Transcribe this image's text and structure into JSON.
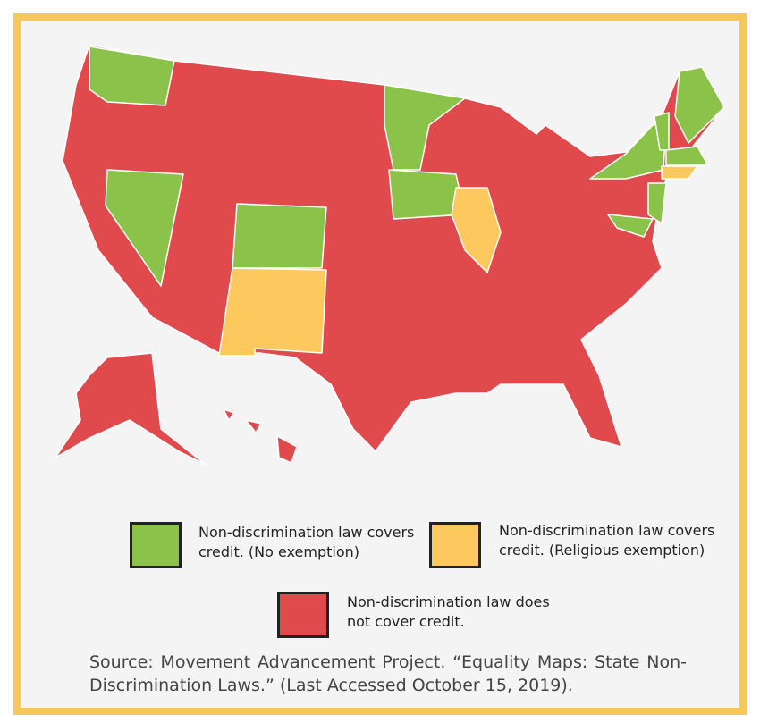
{
  "legend": [
    {
      "label": "Non-discrimination law covers credit. (No exemption)",
      "color": "#8bc34a"
    },
    {
      "label": "Non-discrimination law covers credit. (Religious exemption)",
      "color": "#fdc95f"
    },
    {
      "label": "Non-discrimination law does not cover credit.",
      "color": "#e04a4c"
    }
  ],
  "source": "Source: Movement Advancement Project. “Equality Maps: State Non-Discrimination Laws.” (Last Accessed October 15, 2019)."
}
